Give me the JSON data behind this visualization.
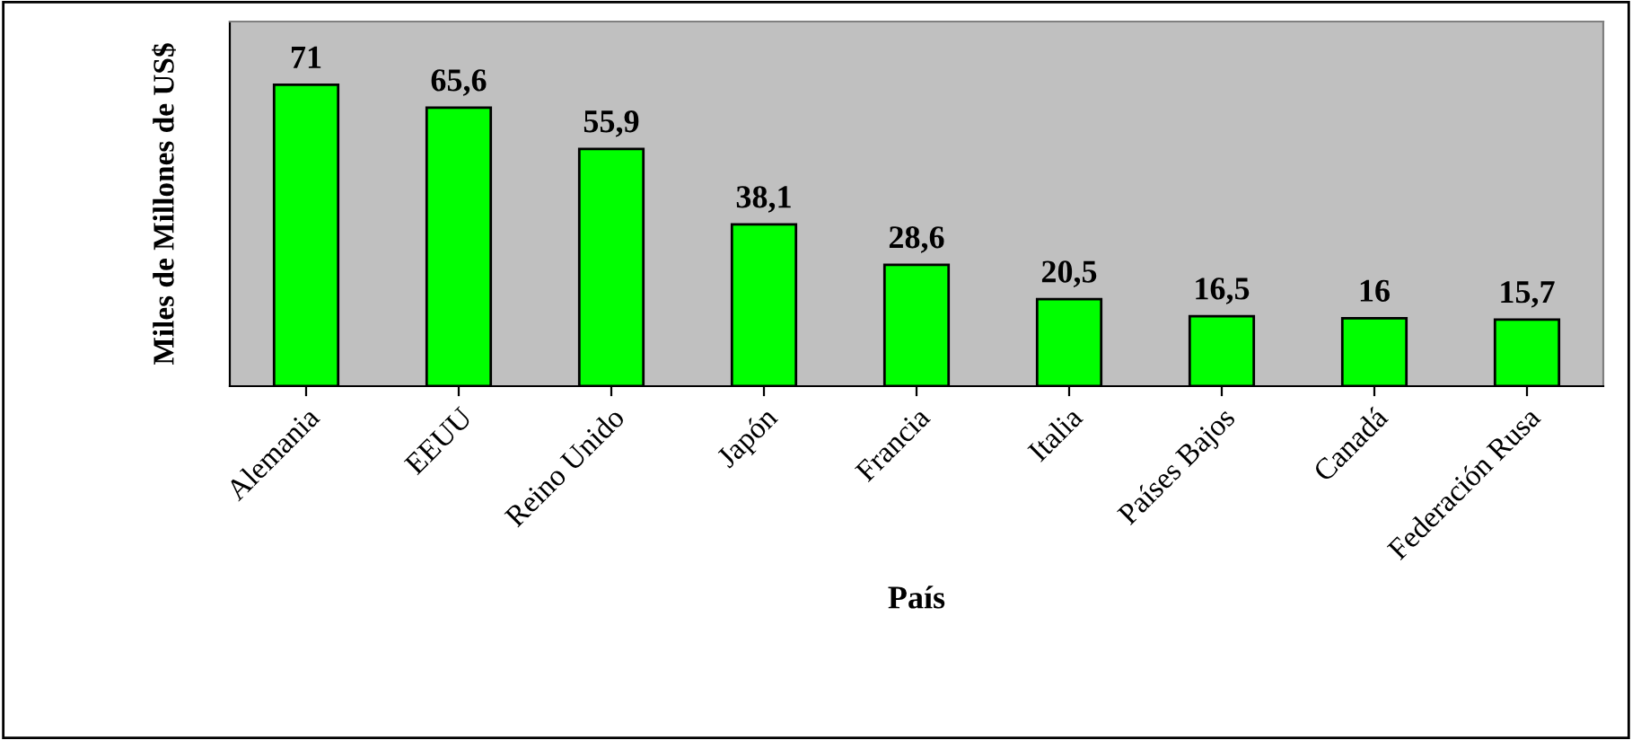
{
  "chart_data": {
    "type": "bar",
    "xlabel": "País",
    "ylabel": "Miles de Millones de US$",
    "categories": [
      "Alemania",
      "EEUU",
      "Reino Unido",
      "Japón",
      "Francia",
      "Italia",
      "Países Bajos",
      "Canadá",
      "Federación Rusa"
    ],
    "values": [
      71,
      65.6,
      55.9,
      38.1,
      28.6,
      20.5,
      16.5,
      16,
      15.7
    ],
    "value_labels": [
      "71",
      "65,6",
      "55,9",
      "38,1",
      "28,6",
      "20,5",
      "16,5",
      "16",
      "15,7"
    ],
    "color": "#00ff00",
    "grid": false,
    "legend": false
  }
}
